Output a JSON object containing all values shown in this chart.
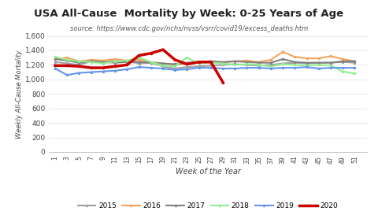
{
  "title": "USA All-Cause  Mortality by Week: 0-25 Years of Age",
  "subtitle": "source: https://www.cdc.gov/nchs/nvss/vsrr/covid19/excess_deaths.htm",
  "xlabel": "Week of the Year",
  "ylabel": "Weekly All-Cause Mortality",
  "ylim": [
    0,
    1600
  ],
  "yticks": [
    0,
    200,
    400,
    600,
    800,
    1000,
    1200,
    1400,
    1600
  ],
  "weeks": [
    1,
    3,
    5,
    7,
    9,
    11,
    13,
    15,
    17,
    19,
    21,
    23,
    25,
    27,
    29,
    31,
    33,
    35,
    37,
    39,
    41,
    43,
    45,
    47,
    49,
    51
  ],
  "series": {
    "2015": [
      1240,
      1220,
      1200,
      1250,
      1230,
      1270,
      1250,
      1220,
      1230,
      1180,
      1150,
      1170,
      1180,
      1190,
      1200,
      1210,
      1200,
      1190,
      1200,
      1220,
      1230,
      1220,
      1230,
      1230,
      1240,
      1230
    ],
    "2016": [
      1280,
      1300,
      1250,
      1270,
      1260,
      1280,
      1260,
      1270,
      1240,
      1220,
      1200,
      1220,
      1230,
      1240,
      1230,
      1250,
      1260,
      1240,
      1270,
      1380,
      1310,
      1290,
      1290,
      1320,
      1280,
      1250
    ],
    "2017": [
      1280,
      1260,
      1230,
      1250,
      1240,
      1230,
      1240,
      1240,
      1230,
      1220,
      1210,
      1230,
      1240,
      1250,
      1240,
      1250,
      1240,
      1230,
      1230,
      1280,
      1240,
      1230,
      1230,
      1230,
      1250,
      1250
    ],
    "2018": [
      1310,
      1270,
      1250,
      1240,
      1220,
      1250,
      1260,
      1300,
      1240,
      1190,
      1180,
      1300,
      1220,
      1230,
      1220,
      1200,
      1210,
      1200,
      1180,
      1210,
      1200,
      1190,
      1200,
      1190,
      1110,
      1080
    ],
    "2019": [
      1150,
      1060,
      1090,
      1100,
      1110,
      1120,
      1140,
      1170,
      1160,
      1150,
      1130,
      1140,
      1160,
      1160,
      1150,
      1150,
      1160,
      1160,
      1150,
      1160,
      1160,
      1170,
      1150,
      1160,
      1160,
      1160
    ],
    "2020": [
      1190,
      1190,
      1180,
      1160,
      1160,
      1180,
      1200,
      1330,
      1360,
      1410,
      1270,
      1210,
      1240,
      1240,
      960,
      null,
      null,
      null,
      null,
      null,
      null,
      null,
      null,
      null,
      null,
      null
    ]
  },
  "colors": {
    "2015": "#a0a0a0",
    "2016": "#f4a460",
    "2017": "#808080",
    "2018": "#90ee90",
    "2019": "#6495ed",
    "2020": "#cc0000"
  },
  "linewidths": {
    "2015": 1.5,
    "2016": 1.5,
    "2017": 1.5,
    "2018": 1.5,
    "2019": 1.5,
    "2020": 2.5
  }
}
